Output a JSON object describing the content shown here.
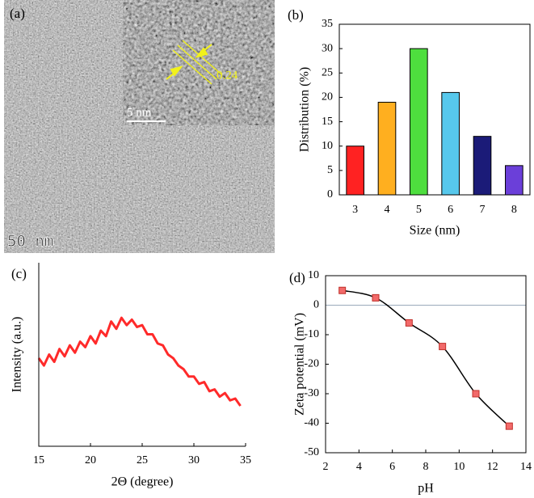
{
  "image_panel": {
    "label": "(a)",
    "scale_bar": "50 nm",
    "inset_scale_bar": "5 nm",
    "lattice_spacing": "0.24"
  },
  "chart_data": [
    {
      "type": "bar",
      "panel_label": "(b)",
      "x_label": "Size (nm)",
      "y_label": "Distribution (%)",
      "categories": [
        "3",
        "4",
        "5",
        "6",
        "7",
        "8"
      ],
      "values": [
        10,
        19,
        30,
        21,
        12,
        6
      ],
      "colors": [
        "#ff2222",
        "#ffaf1f",
        "#4ede3e",
        "#57c8ec",
        "#1b1b78",
        "#6b3fd9"
      ],
      "ylim": [
        0,
        35
      ],
      "yticks": [
        0,
        5,
        10,
        15,
        20,
        25,
        30,
        35
      ]
    },
    {
      "type": "line",
      "panel_label": "(c)",
      "x_label": "2Θ (degree)",
      "y_label": "Intensity (a.u.)",
      "x": [
        15,
        15.5,
        16,
        16.5,
        17,
        17.5,
        18,
        18.5,
        19,
        19.5,
        20,
        20.5,
        21,
        21.5,
        22,
        22.5,
        23,
        23.5,
        24,
        24.5,
        25,
        25.5,
        26,
        26.5,
        27,
        27.5,
        28,
        28.5,
        29,
        29.5,
        30,
        30.5,
        31,
        31.5,
        32,
        32.5,
        33,
        33.5,
        34,
        34.5
      ],
      "values": [
        48,
        44,
        50,
        46,
        53,
        49,
        55,
        51,
        57,
        54,
        60,
        56,
        63,
        60,
        68,
        64,
        70,
        66,
        69,
        65,
        66,
        61,
        61,
        56,
        55,
        50,
        48,
        44,
        42,
        38,
        38,
        34,
        35,
        30,
        31,
        27,
        29,
        25,
        26,
        22
      ],
      "color": "#ff2a2a",
      "xlim": [
        15,
        35
      ],
      "xticks": [
        15,
        20,
        25,
        30,
        35
      ],
      "ylim": [
        0,
        100
      ]
    },
    {
      "type": "line",
      "panel_label": "(d)",
      "x_label": "pH",
      "y_label": "Zeta potential (mV)",
      "x": [
        3,
        5,
        7,
        9,
        11,
        13
      ],
      "values": [
        5,
        2.5,
        -6,
        -14,
        -30,
        -41
      ],
      "color": "#000000",
      "marker": "square",
      "marker_color": "#f26a6a",
      "xlim": [
        2,
        14
      ],
      "xticks": [
        2,
        4,
        6,
        8,
        10,
        12,
        14
      ],
      "ylim": [
        -50,
        10
      ],
      "yticks": [
        -50,
        -40,
        -30,
        -20,
        -10,
        0,
        10
      ],
      "zero_line": true
    }
  ]
}
